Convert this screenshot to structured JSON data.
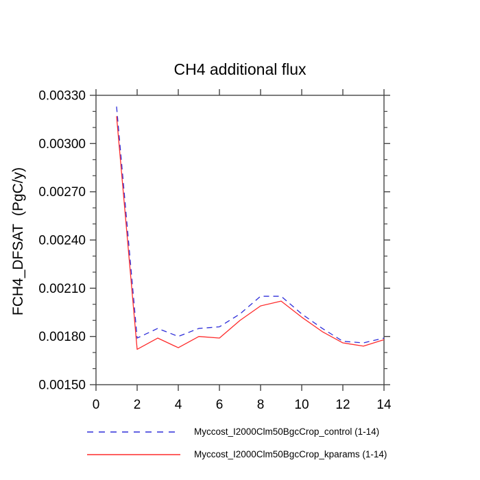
{
  "chart_data": {
    "type": "line",
    "title": "CH4 additional flux",
    "xlabel": "",
    "ylabel": "FCH4_DFSAT  (PgC/y)",
    "xlim": [
      0,
      14
    ],
    "ylim": [
      0.0015,
      0.0033
    ],
    "xticks": [
      0,
      2,
      4,
      6,
      8,
      10,
      12,
      14
    ],
    "yticks": [
      0.0015,
      0.0018,
      0.0021,
      0.0024,
      0.0027,
      0.003,
      0.0033
    ],
    "ytick_labels": [
      "0.00150",
      "0.00180",
      "0.00210",
      "0.00240",
      "0.00270",
      "0.00300",
      "0.00330"
    ],
    "y_minor_step": 0.0001,
    "grid": false,
    "legend_position": "bottom",
    "background_color": "#ffffff",
    "axis_color": "#444444",
    "text_color": "#000000",
    "x": [
      1,
      2,
      3,
      4,
      5,
      6,
      7,
      8,
      9,
      10,
      11,
      12,
      13,
      14
    ],
    "series": [
      {
        "name": "Myccost_I2000Clm50BgcCrop_control (1-14)",
        "color": "#2d2dd9",
        "style": "dashed",
        "values": [
          0.00323,
          0.00179,
          0.00185,
          0.0018,
          0.00185,
          0.00186,
          0.00194,
          0.00205,
          0.00205,
          0.00194,
          0.00185,
          0.00177,
          0.00176,
          0.00179
        ]
      },
      {
        "name": "Myccost_I2000Clm50BgcCrop_kparams (1-14)",
        "color": "#fe2a2a",
        "style": "solid",
        "values": [
          0.00317,
          0.00172,
          0.00179,
          0.00173,
          0.0018,
          0.00179,
          0.0019,
          0.00199,
          0.00202,
          0.00192,
          0.00183,
          0.00176,
          0.00174,
          0.00178
        ]
      }
    ]
  }
}
